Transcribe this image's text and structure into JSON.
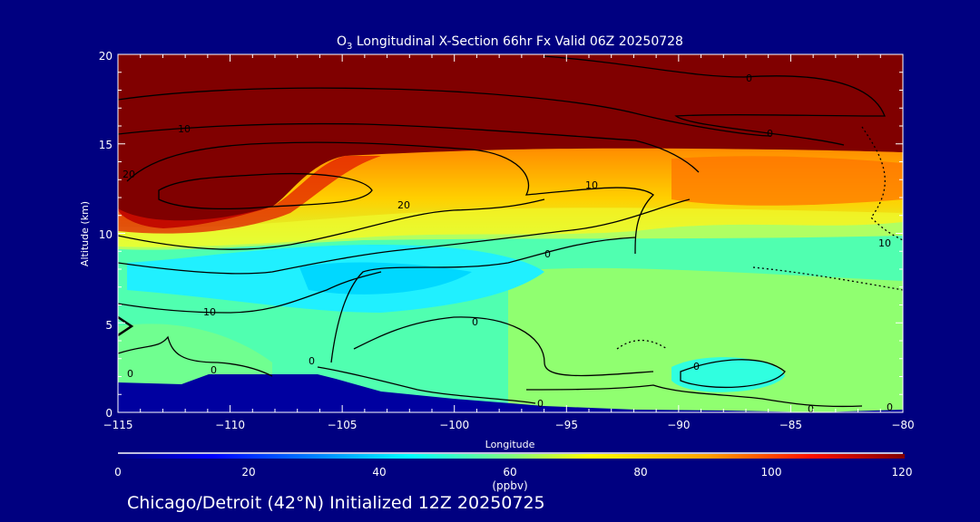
{
  "chart_data": {
    "type": "heatmap",
    "title": "O3 Longitudinal X-Section 66hr  Fx Valid 06Z 20250728",
    "title_parts": {
      "species": "O",
      "subscript": "3",
      "rest": " Longitudinal X-Section 66hr  Fx Valid 06Z 20250728"
    },
    "xlabel": "Longitude",
    "ylabel": "Altitude (km)",
    "xlim": [
      -115,
      -80
    ],
    "ylim": [
      0,
      20
    ],
    "x_ticks": [
      -115,
      -110,
      -105,
      -100,
      -95,
      -90,
      -85,
      -80
    ],
    "x_tick_labels": [
      "−115",
      "−110",
      "−105",
      "−100",
      "−95",
      "−90",
      "−85",
      "−80"
    ],
    "y_ticks": [
      0,
      5,
      10,
      15,
      20
    ],
    "y_tick_labels": [
      "0",
      "5",
      "10",
      "15",
      "20"
    ],
    "colorbar": {
      "range": [
        0,
        120
      ],
      "ticks": [
        "0",
        "20",
        "40",
        "60",
        "80",
        "100",
        "120"
      ],
      "units": "(ppbv)",
      "colors": [
        "#000080",
        "#0000ff",
        "#00a0ff",
        "#00ffff",
        "#80ff80",
        "#ffff00",
        "#ffa000",
        "#ff2000",
        "#800000"
      ]
    },
    "contour_labels": [
      {
        "text": "0",
        "lon": -88,
        "alt": 18.6
      },
      {
        "text": "0",
        "lon": -83.8,
        "alt": 15.5
      },
      {
        "text": "10",
        "lon": -112.3,
        "alt": 15.8
      },
      {
        "text": "20",
        "lon": -114.5,
        "alt": 13.3
      },
      {
        "text": "10",
        "lon": -94.6,
        "alt": 12.7
      },
      {
        "text": "20",
        "lon": -102.8,
        "alt": 11.6
      },
      {
        "text": "10",
        "lon": -81,
        "alt": 9.5
      },
      {
        "text": "0",
        "lon": -95.3,
        "alt": 8.9
      },
      {
        "text": "10",
        "lon": -111.1,
        "alt": 5.6
      },
      {
        "text": "0",
        "lon": -99.6,
        "alt": 5.1
      },
      {
        "text": "0",
        "lon": -89.3,
        "alt": 2.6
      },
      {
        "text": "0",
        "lon": -105.6,
        "alt": 2.9
      },
      {
        "text": "0",
        "lon": -110.1,
        "alt": 2.4
      },
      {
        "text": "0",
        "lon": -114.4,
        "alt": 2.2
      },
      {
        "text": "0",
        "lon": -95.1,
        "alt": 0.5
      },
      {
        "text": "0",
        "lon": -84.2,
        "alt": 0.2
      },
      {
        "text": "0",
        "lon": -80.6,
        "alt": 0.3
      }
    ]
  },
  "footer": {
    "location": "Chicago/Detroit (42°N) Initialized 12Z 20250725"
  }
}
